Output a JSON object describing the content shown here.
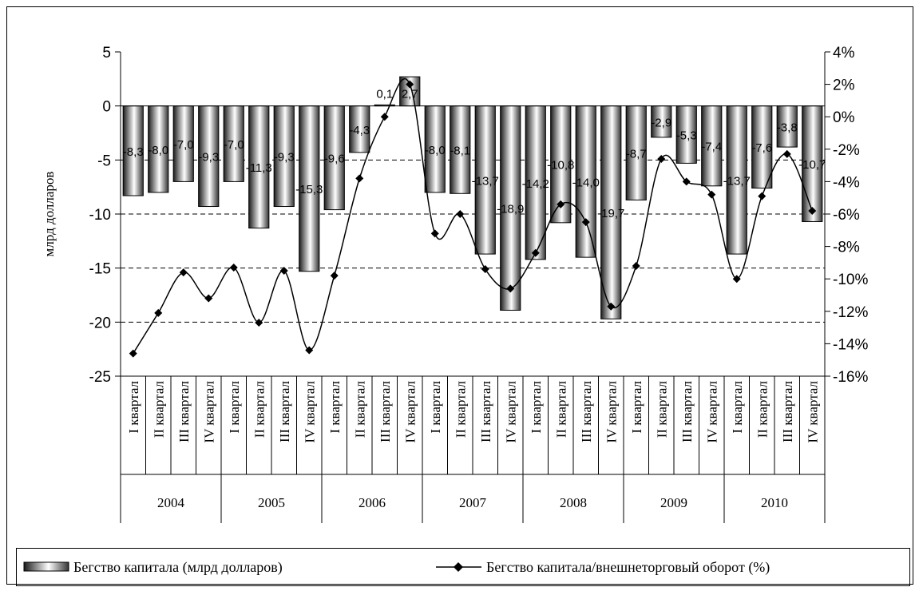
{
  "chart_data": {
    "type": "bar+line",
    "ylabel": "млрд долларов",
    "ylim": [
      -25,
      5
    ],
    "y_ticks": [
      "5",
      "0",
      "-5",
      "-10",
      "-15",
      "-20",
      "-25"
    ],
    "y2lim": [
      -16,
      4
    ],
    "y2_ticks": [
      "4%",
      "2%",
      "0%",
      "-2%",
      "-4%",
      "-6%",
      "-8%",
      "-10%",
      "-12%",
      "-14%",
      "-16%"
    ],
    "grid": "horizontal dashed",
    "legend_position": "bottom",
    "years": [
      "2004",
      "2005",
      "2006",
      "2007",
      "2008",
      "2009",
      "2010"
    ],
    "quarters": [
      "I квартал",
      "II квартал",
      "III квартал",
      "IV квартал"
    ],
    "series": [
      {
        "name": "Бегство капитала (млрд долларов)",
        "type": "bar",
        "axis": "left",
        "values": [
          -8.3,
          -8.0,
          -7.0,
          -9.3,
          -7.0,
          -11.3,
          -9.3,
          -15.3,
          -9.6,
          -4.3,
          0.1,
          2.7,
          -8.0,
          -8.1,
          -13.7,
          -18.9,
          -14.2,
          -10.8,
          -14.0,
          -19.7,
          -8.7,
          -2.9,
          -5.3,
          -7.4,
          -13.7,
          -7.6,
          -3.8,
          -10.7
        ],
        "labels": [
          "-8,3",
          "-8,0",
          "-7,0",
          "-9,3",
          "-7,0",
          "-11,3",
          "-9,3",
          "-15,3",
          "-9,6",
          "-4,3",
          "0,1",
          "2,7",
          "-8,0",
          "-8,1",
          "-13,7",
          "-18,9",
          "-14,2",
          "-10,8",
          "-14,0",
          "-19,7",
          "-8,7",
          "-2,9",
          "-5,3",
          "-7,4",
          "-13,7",
          "-7,6",
          "-3,8",
          "-10,7"
        ]
      },
      {
        "name": "Бегство капитала/внешнеторговый оборот (%)",
        "type": "line",
        "axis": "right",
        "values": [
          -14.6,
          -12.1,
          -9.6,
          -11.2,
          -9.3,
          -12.7,
          -9.5,
          -14.4,
          -9.8,
          -3.8,
          0.0,
          2.0,
          -7.2,
          -6.0,
          -9.4,
          -10.6,
          -8.4,
          -5.4,
          -6.5,
          -11.7,
          -9.2,
          -2.6,
          -4.0,
          -4.8,
          -10.0,
          -4.9,
          -2.3,
          -5.8
        ]
      }
    ]
  }
}
